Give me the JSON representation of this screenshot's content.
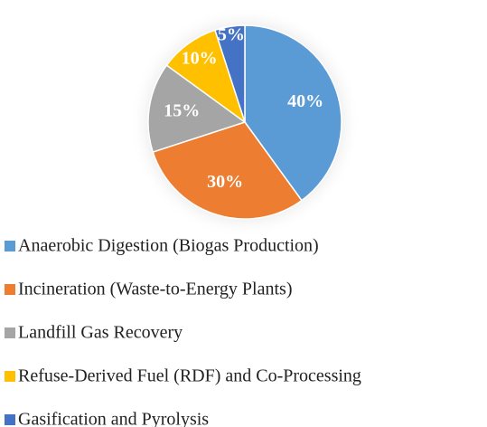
{
  "chart_data": {
    "type": "pie",
    "categories": [
      "Anaerobic Digestion (Biogas Production)",
      "Incineration (Waste-to-Energy Plants)",
      "Landfill Gas Recovery",
      "Refuse-Derived Fuel (RDF) and Co-Processing",
      "Gasification and Pyrolysis"
    ],
    "values": [
      40,
      30,
      15,
      10,
      5
    ],
    "value_labels": [
      "40%",
      "30%",
      "15%",
      "10%",
      "5%"
    ],
    "colors": [
      "#5b9bd5",
      "#ed7d31",
      "#a5a5a5",
      "#ffc000",
      "#4472c4"
    ],
    "legend": "bottom"
  }
}
